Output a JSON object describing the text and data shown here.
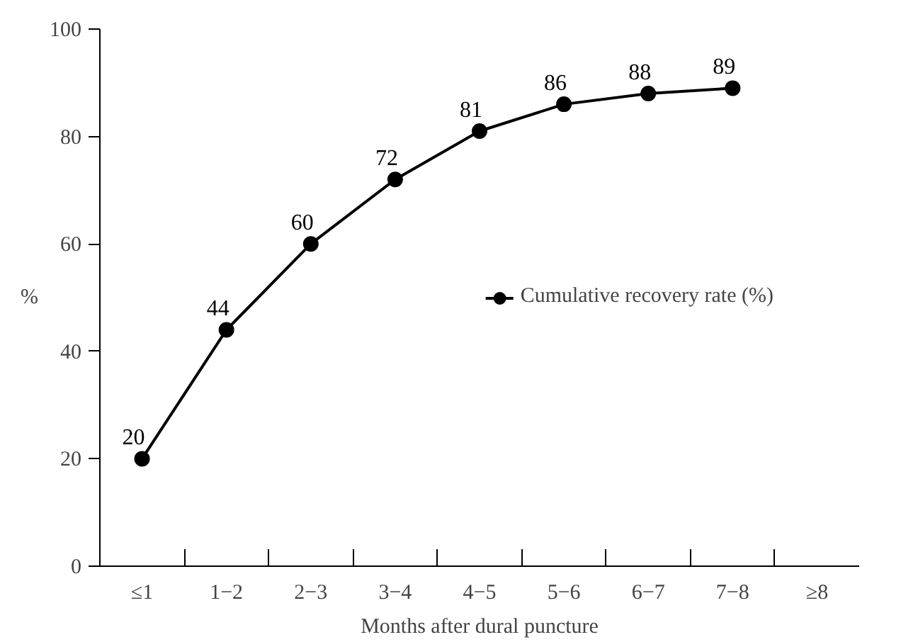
{
  "chart_data": {
    "type": "line",
    "xlabel": "Months after dural puncture",
    "ylabel": "%",
    "categories": [
      "≤1",
      "1−2",
      "2−3",
      "3−4",
      "4−5",
      "5−6",
      "6−7",
      "7−8",
      "≥8"
    ],
    "series": [
      {
        "name": "Cumulative recovery rate (%)",
        "color": "#000000",
        "values": [
          20,
          44,
          60,
          72,
          81,
          86,
          88,
          89,
          null
        ]
      }
    ],
    "ylim": [
      0,
      100
    ],
    "yticks": [
      0,
      20,
      40,
      60,
      80,
      100
    ],
    "grid": false,
    "legend": "right",
    "marker": "circle",
    "line_style": "solid",
    "data_labels": true
  }
}
